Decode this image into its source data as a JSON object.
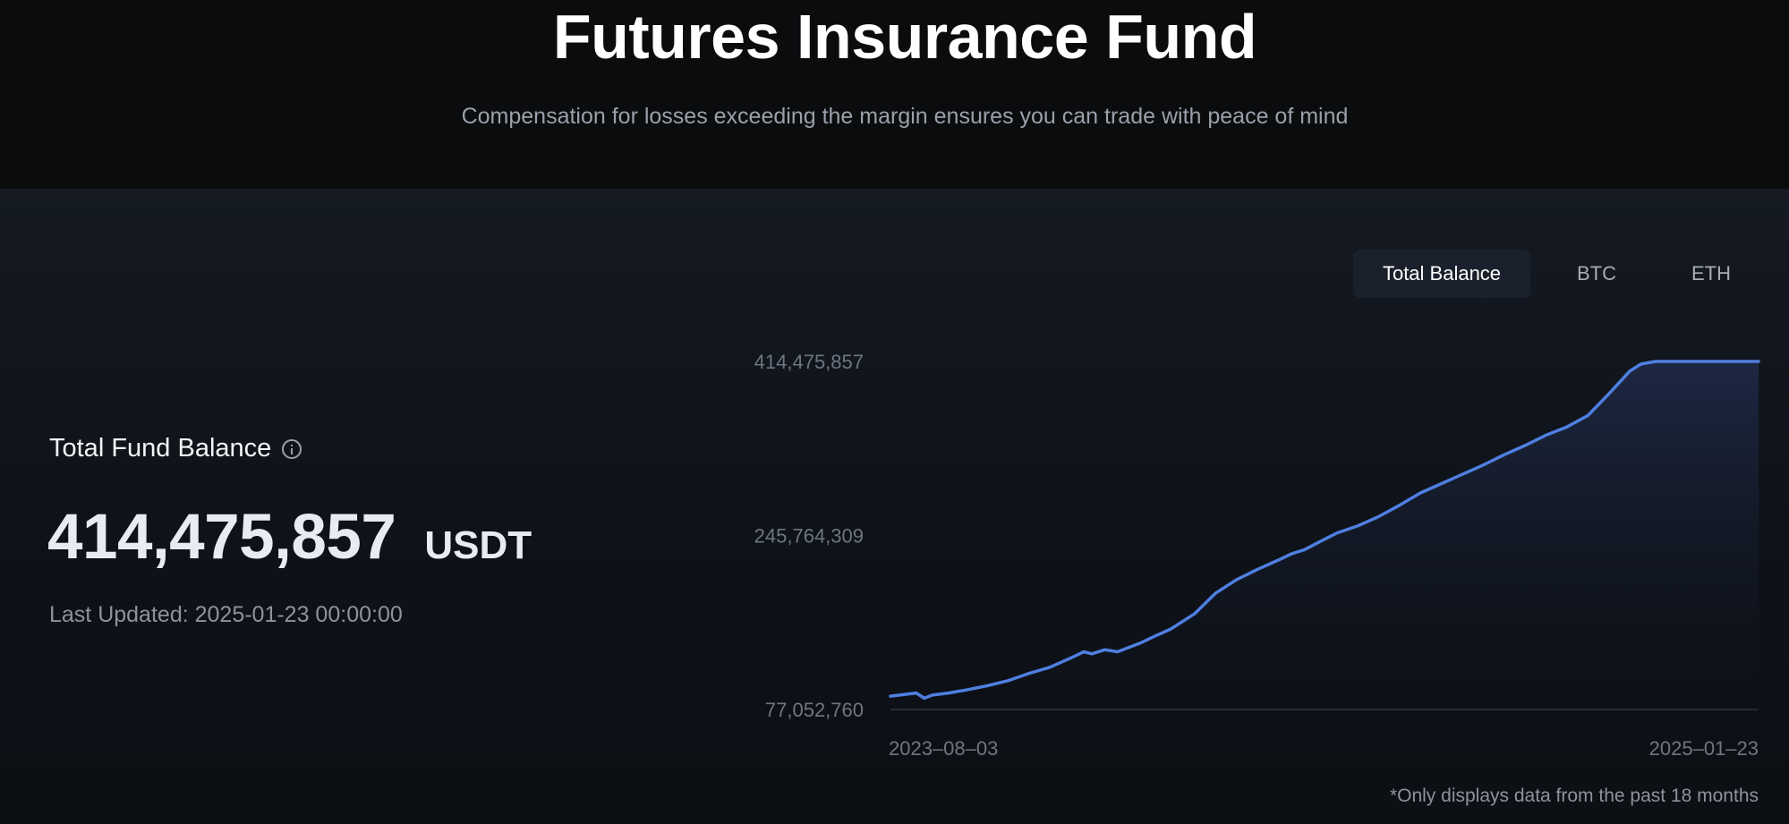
{
  "header": {
    "title": "Futures Insurance Fund",
    "subtitle": "Compensation for losses exceeding the margin ensures you can trade with peace of mind"
  },
  "tabs": [
    "Total Balance",
    "BTC",
    "ETH"
  ],
  "active_tab": "Total Balance",
  "summary": {
    "label": "Total Fund Balance",
    "value": "414,475,857",
    "unit": "USDT",
    "last_updated": "Last Updated: 2025-01-23 00:00:00"
  },
  "footnote": "*Only displays data from the past 18 months",
  "colors": {
    "line": "#4f7fe0",
    "area": "#1b2540",
    "accent_tab_bg": "#1b212c"
  },
  "chart_data": {
    "type": "area",
    "y_ticks": [
      "414,475,857",
      "245,764,309",
      "77,052,760"
    ],
    "x_ticks": [
      "2023–08–03",
      "2025–01–23"
    ],
    "ylim": [
      77052760,
      414475857
    ],
    "xlim": [
      "2023-08-03",
      "2025-01-23"
    ],
    "grid": false,
    "series": [
      {
        "x": [
          "2023-08-03",
          "2023-08-19",
          "2023-08-24",
          "2023-08-29",
          "2023-09-08",
          "2023-09-19",
          "2023-10-02",
          "2023-10-15",
          "2023-10-28",
          "2023-11-10",
          "2023-11-23",
          "2023-12-01",
          "2023-12-06",
          "2023-12-14",
          "2023-12-22",
          "2024-01-01",
          "2024-01-06",
          "2024-01-14",
          "2024-01-24",
          "2024-02-08",
          "2024-02-21",
          "2024-03-05",
          "2024-03-18",
          "2024-03-31",
          "2024-04-08",
          "2024-04-16",
          "2024-04-26",
          "2024-05-06",
          "2024-05-19",
          "2024-06-01",
          "2024-06-14",
          "2024-06-27",
          "2024-07-10",
          "2024-07-23",
          "2024-08-05",
          "2024-08-18",
          "2024-08-31",
          "2024-09-13",
          "2024-09-26",
          "2024-10-09",
          "2024-10-22",
          "2024-11-04",
          "2024-11-11",
          "2024-11-20",
          "2024-12-01",
          "2024-12-14",
          "2024-12-27",
          "2025-01-09",
          "2025-01-23"
        ],
        "y": [
          90000000,
          93000000,
          88000000,
          91000000,
          93000000,
          96000000,
          100000000,
          105000000,
          112000000,
          118000000,
          127000000,
          133000000,
          131000000,
          135000000,
          133000000,
          139000000,
          142000000,
          148000000,
          155000000,
          170000000,
          190000000,
          203000000,
          213000000,
          222000000,
          228000000,
          232000000,
          240000000,
          248000000,
          255000000,
          264000000,
          275000000,
          287000000,
          296000000,
          305000000,
          314000000,
          324000000,
          333000000,
          343000000,
          351000000,
          362000000,
          383000000,
          405000000,
          412000000,
          414475857,
          414475857,
          414475857,
          414475857,
          414475857,
          414475857
        ]
      }
    ]
  }
}
